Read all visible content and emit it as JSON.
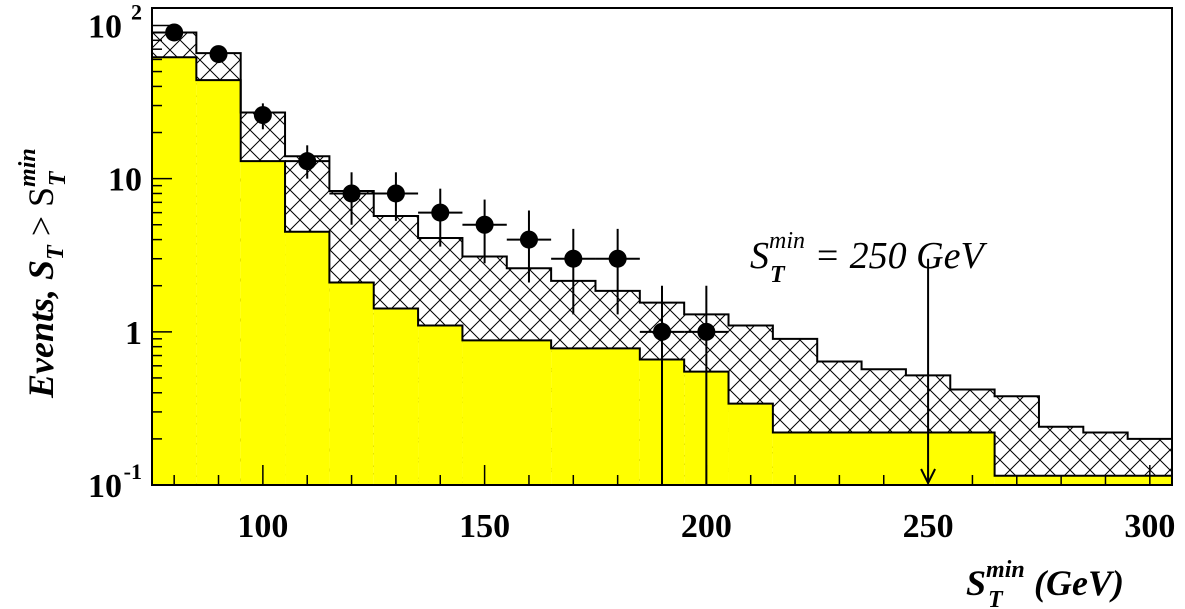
{
  "chart_data": {
    "type": "histogram",
    "y_scale": "log",
    "xlim": [
      75,
      305
    ],
    "ylim": [
      0.1,
      130
    ],
    "x_ticks": [
      {
        "value": 100,
        "label": "100"
      },
      {
        "value": 150,
        "label": "150"
      },
      {
        "value": 200,
        "label": "200"
      },
      {
        "value": 250,
        "label": "250"
      },
      {
        "value": 300,
        "label": "300"
      }
    ],
    "y_ticks": [
      {
        "value": 100,
        "base": "10",
        "exp": "2"
      },
      {
        "value": 10,
        "base": "10",
        "exp": ""
      },
      {
        "value": 1,
        "base": "1",
        "exp": ""
      },
      {
        "value": 0.1,
        "base": "10",
        "exp": "-1"
      }
    ],
    "xlabel": {
      "prefix": "S",
      "sup": "min",
      "sub": "T",
      "suffix": "(GeV)"
    },
    "ylabel": {
      "text": "Events, S",
      "sub1": "T",
      "gt": " > S",
      "sup2": "min",
      "sub2": "T"
    },
    "yellow_hist": {
      "color": "#ffff00",
      "edges": [
        75,
        85,
        95,
        105,
        115,
        125,
        135,
        145,
        165,
        185,
        195,
        205,
        215,
        265,
        305
      ],
      "values": [
        62,
        44,
        13,
        4.5,
        2.1,
        1.42,
        1.1,
        0.88,
        0.78,
        0.66,
        0.55,
        0.34,
        0.22,
        0.115
      ]
    },
    "total_hist": {
      "edges": [
        75,
        85,
        95,
        105,
        115,
        125,
        135,
        145,
        155,
        165,
        175,
        185,
        195,
        205,
        215,
        225,
        235,
        245,
        255,
        265,
        275,
        285,
        295,
        305
      ],
      "values": [
        90,
        66,
        27,
        14,
        8.3,
        5.7,
        4.1,
        3.1,
        2.6,
        2.15,
        1.85,
        1.55,
        1.3,
        1.1,
        0.9,
        0.64,
        0.57,
        0.52,
        0.42,
        0.38,
        0.24,
        0.22,
        0.2
      ]
    },
    "data_points": [
      {
        "x": 80,
        "y": 90,
        "ylo": 88,
        "yhi": 92,
        "xerr": 0
      },
      {
        "x": 90,
        "y": 65,
        "ylo": 63,
        "yhi": 67,
        "xerr": 0
      },
      {
        "x": 100,
        "y": 26,
        "ylo": 21,
        "yhi": 31,
        "xerr": 0
      },
      {
        "x": 110,
        "y": 13,
        "ylo": 10,
        "yhi": 16.5,
        "xerr": 5
      },
      {
        "x": 120,
        "y": 8,
        "ylo": 5,
        "yhi": 11,
        "xerr": 5
      },
      {
        "x": 130,
        "y": 8,
        "ylo": 5.3,
        "yhi": 11,
        "xerr": 5
      },
      {
        "x": 140,
        "y": 6,
        "ylo": 3.6,
        "yhi": 8.6,
        "xerr": 5
      },
      {
        "x": 150,
        "y": 5,
        "ylo": 2.8,
        "yhi": 7.3,
        "xerr": 5
      },
      {
        "x": 160,
        "y": 4,
        "ylo": 2.1,
        "yhi": 6.2,
        "xerr": 5
      },
      {
        "x": 170,
        "y": 3,
        "ylo": 1.3,
        "yhi": 4.7,
        "xerr": 5
      },
      {
        "x": 180,
        "y": 3,
        "ylo": 1.3,
        "yhi": 4.7,
        "xerr": 5
      },
      {
        "x": 190,
        "y": 1,
        "ylo": 0.1,
        "yhi": 2,
        "xerr": 5
      },
      {
        "x": 200,
        "y": 1,
        "ylo": 0.1,
        "yhi": 2,
        "xerr": 5
      }
    ],
    "annotation": {
      "x": 250,
      "prefix": "S",
      "sup": "min",
      "sub": "T",
      "value_text": "= 250 GeV",
      "arrow_from_y": 3.0,
      "arrow_to_y": 0.1
    },
    "grid": false
  }
}
